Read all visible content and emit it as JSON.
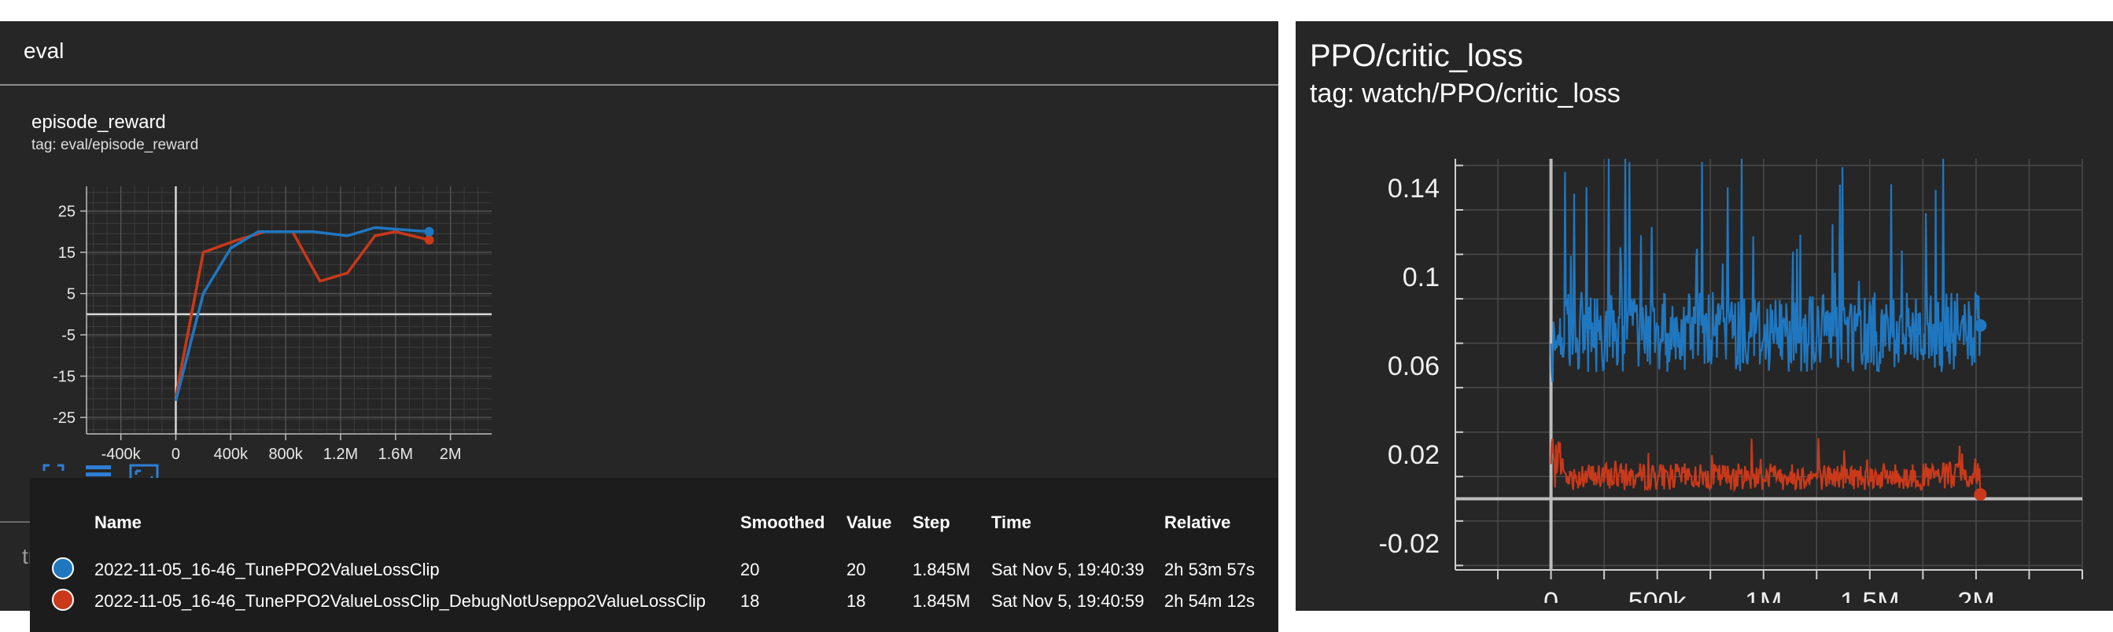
{
  "left_panel": {
    "section_title": "eval",
    "card_title": "episode_reward",
    "card_tag": "tag: eval/episode_reward",
    "collapsed_section": "train",
    "toolbar_icons": [
      "fit-screen-icon",
      "data-table-icon",
      "expand-icon"
    ]
  },
  "tooltip": {
    "headers": {
      "name": "Name",
      "smoothed": "Smoothed",
      "value": "Value",
      "step": "Step",
      "time": "Time",
      "relative": "Relative"
    },
    "rows": [
      {
        "color": "#1f77c0",
        "name": "2022-11-05_16-46_TunePPO2ValueLossClip",
        "smoothed": "20",
        "value": "20",
        "step": "1.845M",
        "time": "Sat Nov 5, 19:40:39",
        "relative": "2h 53m 57s"
      },
      {
        "color": "#c9391a",
        "name": "2022-11-05_16-46_TunePPO2ValueLossClip_DebugNotUseppo2ValueLossClip",
        "smoothed": "18",
        "value": "18",
        "step": "1.845M",
        "time": "Sat Nov 5, 19:40:59",
        "relative": "2h 54m 12s"
      }
    ]
  },
  "right_panel": {
    "title": "PPO/critic_loss",
    "tag": "tag: watch/PPO/critic_loss"
  },
  "chart_data": [
    {
      "type": "line",
      "title": "episode_reward",
      "xlim": [
        -650000,
        2300000
      ],
      "ylim": [
        -29,
        31
      ],
      "x_ticks": [
        "-400k",
        "0",
        "400k",
        "800k",
        "1.2M",
        "1.6M",
        "2M"
      ],
      "x_tick_values": [
        -400000,
        0,
        400000,
        800000,
        1200000,
        1600000,
        2000000
      ],
      "y_ticks": [
        "25",
        "15",
        "5",
        "-5",
        "-15",
        "-25"
      ],
      "y_tick_values": [
        25,
        15,
        5,
        -5,
        -15,
        -25
      ],
      "series": [
        {
          "name": "2022-11-05_16-46_TunePPO2ValueLossClip",
          "color": "#1f77c0",
          "x": [
            0,
            200000,
            400000,
            600000,
            800000,
            1000000,
            1250000,
            1450000,
            1845000
          ],
          "y": [
            -21,
            5,
            16,
            20,
            20,
            20,
            19,
            21,
            20
          ]
        },
        {
          "name": "2022-11-05_16-46_TunePPO2ValueLossClip_DebugNotUseppo2ValueLossClip",
          "color": "#c9391a",
          "x": [
            0,
            200000,
            450000,
            650000,
            850000,
            1050000,
            1250000,
            1450000,
            1600000,
            1845000
          ],
          "y": [
            -20,
            15,
            18,
            20,
            20,
            8,
            10,
            19,
            20,
            18
          ]
        }
      ]
    },
    {
      "type": "line",
      "title": "PPO/critic_loss",
      "xlim": [
        -450000,
        2500000
      ],
      "ylim": [
        -0.032,
        0.153
      ],
      "x_ticks": [
        "0",
        "500k",
        "1M",
        "1.5M",
        "2M"
      ],
      "x_tick_values": [
        0,
        500000,
        1000000,
        1500000,
        2000000
      ],
      "y_ticks": [
        "0.14",
        "0.1",
        "0.06",
        "0.02",
        "-0.02"
      ],
      "y_tick_values": [
        0.14,
        0.1,
        0.06,
        0.02,
        -0.02
      ],
      "series": [
        {
          "name": "2022-11-05_16-46_TunePPO2ValueLossClip",
          "color": "#1f77c0",
          "x_range": [
            0,
            2020000
          ],
          "typical": 0.075,
          "spread": 0.018,
          "last": 0.078
        },
        {
          "name": "2022-11-05_16-46_TunePPO2ValueLossClip_DebugNotUseppo2ValueLossClip",
          "color": "#c9391a",
          "x_range": [
            0,
            2020000
          ],
          "typical": 0.01,
          "spread": 0.006,
          "last": 0.002
        }
      ]
    }
  ]
}
